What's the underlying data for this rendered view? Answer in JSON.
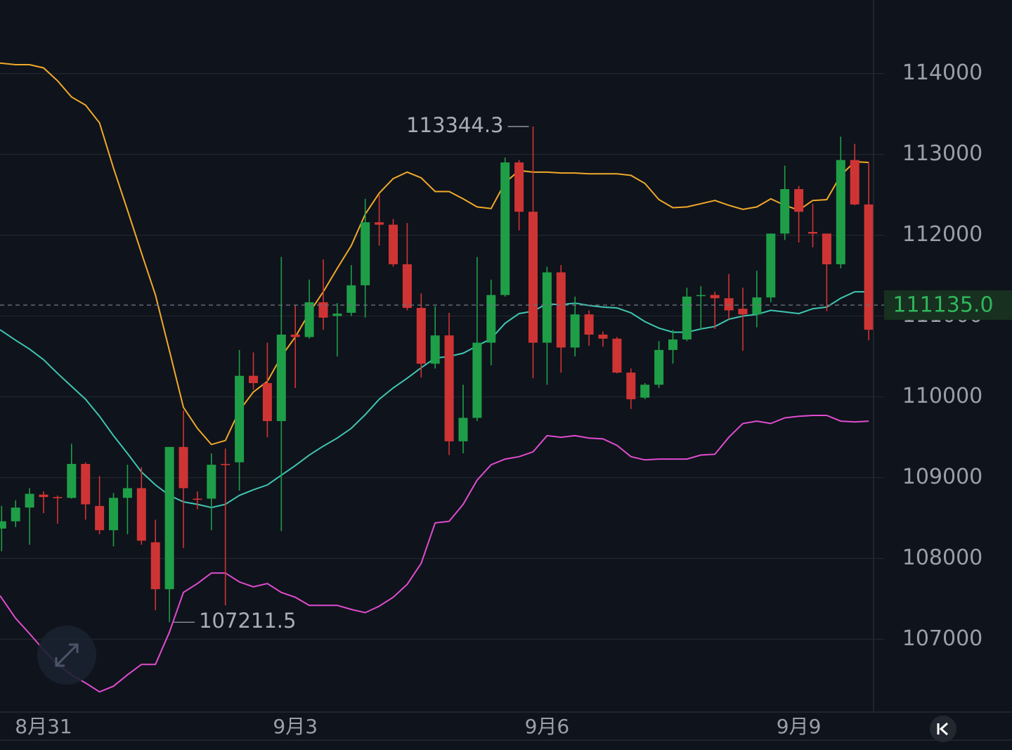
{
  "chart_data": {
    "type": "candlestick",
    "categories": [
      null,
      null,
      null,
      "8月31",
      null,
      null,
      null,
      null,
      null,
      null,
      null,
      null,
      null,
      null,
      null,
      null,
      null,
      null,
      null,
      null,
      null,
      "9月3",
      null,
      null,
      null,
      null,
      null,
      null,
      null,
      null,
      null,
      null,
      null,
      null,
      null,
      null,
      null,
      null,
      null,
      "9月6",
      null,
      null,
      null,
      null,
      null,
      null,
      null,
      null,
      null,
      null,
      null,
      null,
      null,
      null,
      null,
      null,
      null,
      "9月9",
      null,
      null,
      null,
      null,
      null
    ],
    "open": [
      108370,
      108460,
      108630,
      108790,
      108760,
      108750,
      109170,
      108650,
      108350,
      108750,
      108870,
      108200,
      107620,
      109380,
      108740,
      108740,
      109170,
      109190,
      110260,
      110170,
      109700,
      110770,
      110740,
      111170,
      111000,
      111040,
      111380,
      112160,
      112130,
      111640,
      111100,
      110410,
      110760,
      109450,
      109740,
      110670,
      111260,
      112900,
      112290,
      110670,
      111540,
      110610,
      111020,
      110770,
      110720,
      110300,
      109990,
      110150,
      110580,
      110710,
      111250,
      111260,
      111220,
      111090,
      111020,
      111230,
      112020,
      112570,
      112040,
      112020,
      111640,
      112930,
      112380
    ],
    "high": [
      108650,
      108720,
      108870,
      108830,
      108780,
      109420,
      109190,
      109020,
      108810,
      109160,
      109130,
      108480,
      109380,
      109830,
      108830,
      109300,
      109360,
      110580,
      110550,
      110670,
      111730,
      111130,
      111450,
      111700,
      111160,
      111630,
      112450,
      112500,
      112200,
      112150,
      111280,
      111120,
      111040,
      110150,
      111730,
      111450,
      112960,
      112930,
      113344.3,
      111610,
      111630,
      111240,
      111070,
      110810,
      110740,
      110350,
      110170,
      110690,
      110830,
      111350,
      111370,
      111300,
      111520,
      111350,
      111560,
      112020,
      112860,
      112610,
      112390,
      112020,
      113220,
      113130,
      112900
    ],
    "low": [
      108090,
      108390,
      108170,
      108560,
      108430,
      108740,
      108480,
      108300,
      108150,
      108300,
      108170,
      107360,
      107211.5,
      108130,
      108610,
      108350,
      107420,
      108840,
      110090,
      109500,
      108340,
      110110,
      110720,
      110830,
      110500,
      111000,
      110980,
      111870,
      111610,
      111070,
      110240,
      110350,
      109280,
      109300,
      109700,
      110390,
      111240,
      112060,
      110230,
      110150,
      110300,
      110500,
      110630,
      110620,
      110290,
      109850,
      109970,
      110110,
      110410,
      110690,
      110830,
      110840,
      110960,
      110570,
      110860,
      111170,
      111940,
      111910,
      111850,
      111060,
      111590,
      112370,
      110700
    ],
    "close": [
      108460,
      108630,
      108800,
      108760,
      108750,
      109170,
      108670,
      108350,
      108750,
      108870,
      108220,
      107620,
      109380,
      108870,
      108730,
      109160,
      109160,
      110260,
      110170,
      109700,
      110770,
      110740,
      111170,
      110980,
      111030,
      111380,
      112160,
      112130,
      111640,
      111100,
      110410,
      110760,
      109450,
      109740,
      110670,
      111260,
      112900,
      112290,
      110670,
      111540,
      110610,
      111020,
      110770,
      110720,
      110300,
      109970,
      110150,
      110580,
      110710,
      111240,
      111260,
      111220,
      111070,
      111020,
      111230,
      112020,
      112570,
      112290,
      112020,
      111640,
      112930,
      112380,
      110830
    ],
    "up_color": "#1f9e48",
    "down_color": "#cf3434",
    "lines": [
      {
        "color": "#f0a92a",
        "values": [
          114130,
          114110,
          114110,
          114070,
          113910,
          113710,
          113610,
          113390,
          112830,
          112310,
          111780,
          111260,
          110570,
          109870,
          109610,
          109410,
          109460,
          109830,
          110060,
          110190,
          110500,
          110740,
          111040,
          111300,
          111590,
          111870,
          112260,
          112520,
          112700,
          112780,
          112710,
          112540,
          112540,
          112450,
          112350,
          112330,
          112650,
          112800,
          112780,
          112780,
          112770,
          112770,
          112760,
          112760,
          112760,
          112740,
          112640,
          112440,
          112340,
          112350,
          112390,
          112430,
          112370,
          112320,
          112350,
          112450,
          112370,
          112310,
          112430,
          112440,
          112740,
          112910,
          112900
        ]
      },
      {
        "color": "#3fc6b2",
        "values": [
          110830,
          110700,
          110590,
          110460,
          110290,
          110130,
          109970,
          109760,
          109520,
          109300,
          109070,
          108910,
          108780,
          108700,
          108670,
          108630,
          108670,
          108780,
          108850,
          108910,
          109030,
          109150,
          109280,
          109390,
          109490,
          109610,
          109780,
          109970,
          110110,
          110230,
          110360,
          110480,
          110500,
          110540,
          110630,
          110720,
          110910,
          111030,
          111060,
          111150,
          111140,
          111160,
          111130,
          111110,
          111100,
          111040,
          110930,
          110850,
          110800,
          110800,
          110840,
          110870,
          110960,
          111000,
          111020,
          111070,
          111050,
          111030,
          111090,
          111110,
          111220,
          111300,
          111300
        ]
      },
      {
        "color": "#df4ccf",
        "values": [
          107540,
          107260,
          107070,
          106870,
          106690,
          106560,
          106460,
          106350,
          106420,
          106560,
          106690,
          106690,
          107090,
          107580,
          107690,
          107820,
          107820,
          107710,
          107650,
          107690,
          107580,
          107520,
          107420,
          107420,
          107420,
          107370,
          107330,
          107410,
          107520,
          107680,
          107940,
          108440,
          108460,
          108670,
          108970,
          109160,
          109230,
          109260,
          109320,
          109520,
          109500,
          109520,
          109490,
          109480,
          109400,
          109260,
          109220,
          109230,
          109230,
          109230,
          109280,
          109290,
          109500,
          109670,
          109700,
          109670,
          109740,
          109760,
          109770,
          109770,
          109700,
          109690,
          109700
        ]
      }
    ],
    "ylim": [
      106100,
      114910
    ],
    "yticks": [
      107000,
      108000,
      109000,
      110000,
      111000,
      112000,
      113000,
      114000
    ],
    "grid": true,
    "last_price": {
      "value": 111135,
      "label": "111135.0"
    }
  }
}
